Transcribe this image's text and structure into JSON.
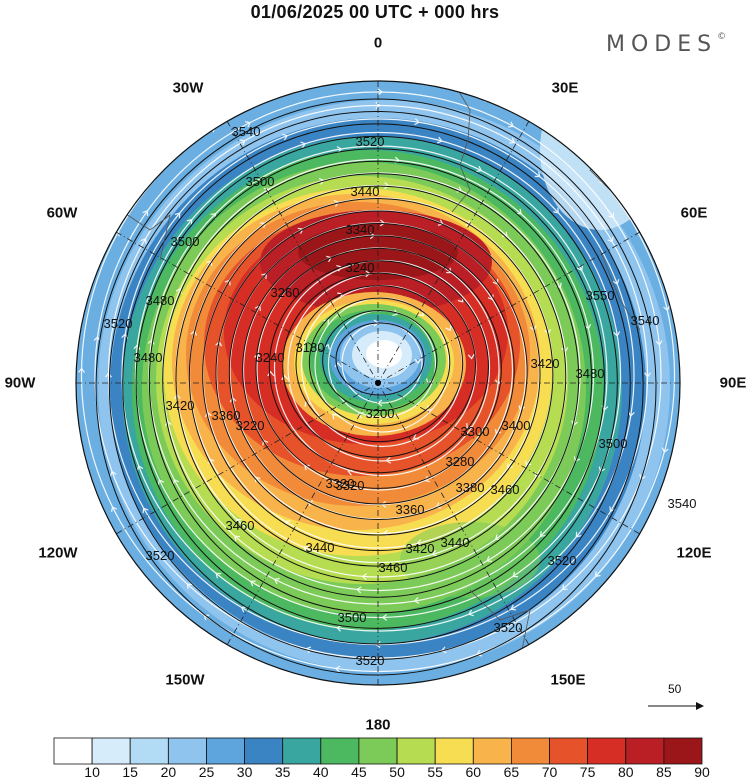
{
  "title": "01/06/2025  00 UTC  + 000 hrs",
  "brand": "MODES",
  "brand_mark": "©",
  "longitude_labels": {
    "top": "0",
    "upper_left": "30W",
    "upper_right": "30E",
    "left_upper": "60W",
    "right_upper": "60E",
    "left": "90W",
    "right": "90E",
    "left_lower": "120W",
    "right_lower": "120E",
    "lower_left": "150W",
    "lower_right": "150E",
    "bottom": "180"
  },
  "reference_vector": {
    "value": "50"
  },
  "colorbar": {
    "tick_labels": [
      "10",
      "15",
      "20",
      "25",
      "30",
      "35",
      "40",
      "45",
      "50",
      "55",
      "60",
      "65",
      "70",
      "75",
      "80",
      "85",
      "90"
    ],
    "colors": [
      "#ffffff",
      "#d6ecfb",
      "#b2dcf6",
      "#8ec4ee",
      "#5ea4dd",
      "#3b84c4",
      "#3aa6a0",
      "#4cb860",
      "#7ccb58",
      "#b6dc52",
      "#f7dd52",
      "#f8b34a",
      "#f18b3a",
      "#e6532a",
      "#d62d24",
      "#b91f25",
      "#9a1618"
    ]
  },
  "contour_labels": [
    "3540",
    "3520",
    "3500",
    "3440",
    "3340",
    "3240",
    "3260",
    "3180",
    "3500",
    "3480",
    "3520",
    "3480",
    "3420",
    "3360",
    "3240",
    "3220",
    "3200",
    "3300",
    "3280",
    "3320",
    "3380",
    "3400",
    "3460",
    "3480",
    "3500",
    "3540",
    "3320",
    "3420",
    "3440",
    "3460",
    "3520",
    "3500",
    "3520",
    "3460",
    "3420",
    "3440",
    "3360",
    "3520",
    "3550",
    "3540",
    "3520"
  ],
  "chart_data": {
    "type": "heatmap",
    "variable_colorbar_levels": [
      10,
      15,
      20,
      25,
      30,
      35,
      40,
      45,
      50,
      55,
      60,
      65,
      70,
      75,
      80,
      85,
      90
    ],
    "contour_levels": [
      3180,
      3200,
      3220,
      3240,
      3260,
      3280,
      3300,
      3320,
      3340,
      3360,
      3380,
      3400,
      3420,
      3440,
      3460,
      3480,
      3500,
      3520,
      3540
    ],
    "projection": "polar stereographic",
    "valid_time": "01/06/2025 00 UTC",
    "forecast_hour": "+ 000 hrs"
  }
}
